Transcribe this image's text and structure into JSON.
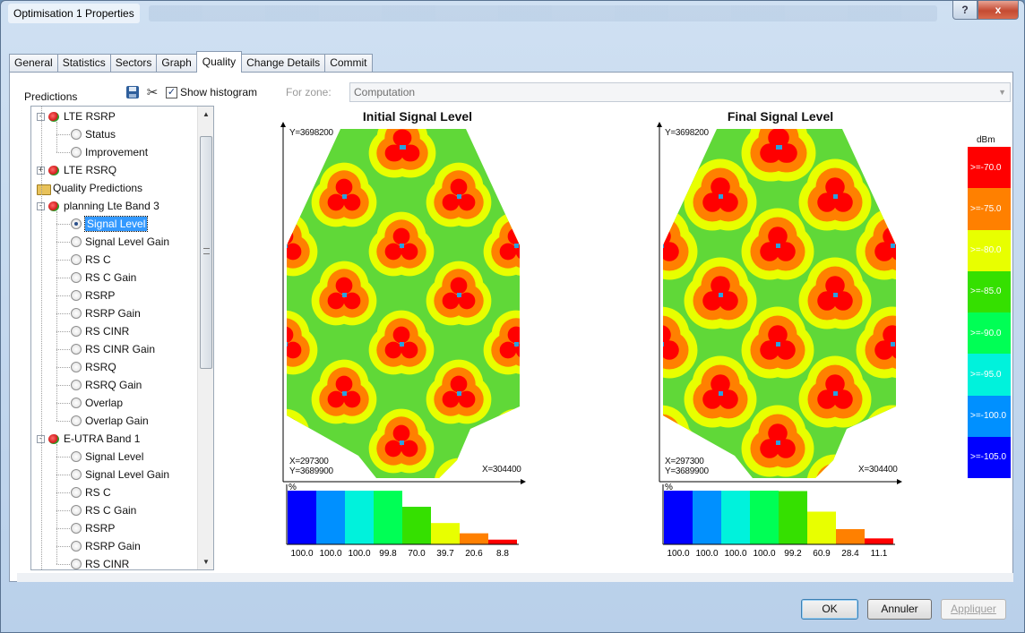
{
  "window": {
    "title": "Optimisation 1 Properties",
    "help_label": "?",
    "close_label": "x"
  },
  "tabs": [
    {
      "label": "General"
    },
    {
      "label": "Statistics"
    },
    {
      "label": "Sectors"
    },
    {
      "label": "Graph"
    },
    {
      "label": "Quality",
      "active": true
    },
    {
      "label": "Change Details"
    },
    {
      "label": "Commit"
    }
  ],
  "panel": {
    "predictions_label": "Predictions"
  },
  "toolbar": {
    "save_icon": "save-icon",
    "tools_icon": "tools-icon",
    "show_histogram_label": "Show histogram",
    "show_histogram_checked": true,
    "for_zone_label": "For zone:",
    "zone_value": "Computation"
  },
  "tree": [
    {
      "label": "LTE RSRP",
      "type": "group",
      "expander": "-"
    },
    {
      "label": "Status",
      "type": "radio"
    },
    {
      "label": "Improvement",
      "type": "radio"
    },
    {
      "label": "LTE RSRQ",
      "type": "group",
      "expander": "+"
    },
    {
      "label": "Quality Predictions",
      "type": "folder"
    },
    {
      "label": "planning Lte Band 3",
      "type": "group",
      "expander": "-"
    },
    {
      "label": "Signal Level",
      "type": "radio",
      "selected": true
    },
    {
      "label": "Signal Level Gain",
      "type": "radio"
    },
    {
      "label": "RS C",
      "type": "radio"
    },
    {
      "label": "RS C Gain",
      "type": "radio"
    },
    {
      "label": "RSRP",
      "type": "radio"
    },
    {
      "label": "RSRP Gain",
      "type": "radio"
    },
    {
      "label": "RS CINR",
      "type": "radio"
    },
    {
      "label": "RS CINR Gain",
      "type": "radio"
    },
    {
      "label": "RSRQ",
      "type": "radio"
    },
    {
      "label": "RSRQ Gain",
      "type": "radio"
    },
    {
      "label": "Overlap",
      "type": "radio"
    },
    {
      "label": "Overlap Gain",
      "type": "radio"
    },
    {
      "label": "E-UTRA Band 1",
      "type": "group",
      "expander": "-"
    },
    {
      "label": "Signal Level",
      "type": "radio"
    },
    {
      "label": "Signal Level Gain",
      "type": "radio"
    },
    {
      "label": "RS C",
      "type": "radio"
    },
    {
      "label": "RS C Gain",
      "type": "radio"
    },
    {
      "label": "RSRP",
      "type": "radio"
    },
    {
      "label": "RSRP Gain",
      "type": "radio"
    },
    {
      "label": "RS CINR",
      "type": "radio"
    }
  ],
  "maps": [
    {
      "title": "Initial Signal Level",
      "y_top": "Y=3698200",
      "x_left": "X=297300",
      "y_bottom": "Y=3689900",
      "x_right": "X=304400",
      "hist_axis_label": "%",
      "histogram": [
        100.0,
        100.0,
        100.0,
        99.8,
        70.0,
        39.7,
        20.6,
        8.8
      ],
      "histogram_labels": [
        "100.0",
        "100.0",
        "100.0",
        "99.8",
        "70.0",
        "39.7",
        "20.6",
        "8.8"
      ]
    },
    {
      "title": "Final Signal Level",
      "y_top": "Y=3698200",
      "x_left": "X=297300",
      "y_bottom": "Y=3689900",
      "x_right": "X=304400",
      "hist_axis_label": "%",
      "histogram": [
        100.0,
        100.0,
        100.0,
        100.0,
        99.2,
        60.9,
        28.4,
        11.1
      ],
      "histogram_labels": [
        "100.0",
        "100.0",
        "100.0",
        "100.0",
        "99.2",
        "60.9",
        "28.4",
        "11.1"
      ]
    }
  ],
  "legend": {
    "unit": "dBm",
    "items": [
      {
        "label": ">=-70.0",
        "color": "#ff0000"
      },
      {
        "label": ">=-75.0",
        "color": "#ff8000"
      },
      {
        "label": ">=-80.0",
        "color": "#e8ff00"
      },
      {
        "label": ">=-85.0",
        "color": "#35e000"
      },
      {
        "label": ">=-90.0",
        "color": "#00ff55"
      },
      {
        "label": ">=-95.0",
        "color": "#00f2dc"
      },
      {
        "label": ">=-100.0",
        "color": "#0090ff"
      },
      {
        "label": ">=-105.0",
        "color": "#0000ff"
      }
    ]
  },
  "histogram_colors": [
    "#0000ff",
    "#0090ff",
    "#00f2dc",
    "#00ff55",
    "#35e000",
    "#e8ff00",
    "#ff8000",
    "#ff0000"
  ],
  "coverage_colors": {
    "base": "#60d838",
    "ring1": "#e8ff00",
    "ring2": "#ff8000",
    "core": "#ff0000"
  },
  "buttons": {
    "ok": "OK",
    "cancel": "Annuler",
    "apply": "Appliquer"
  }
}
